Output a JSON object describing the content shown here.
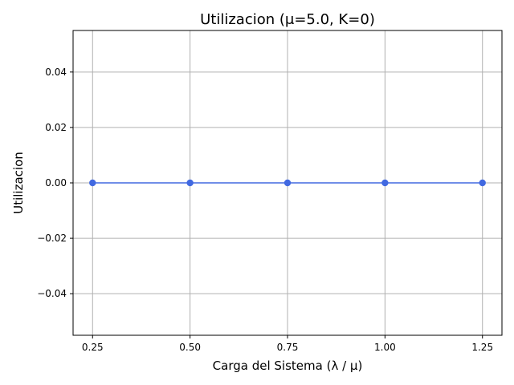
{
  "chart_data": {
    "type": "line",
    "title": "Utilizacion (μ=5.0, K=0)",
    "xlabel": "Carga del Sistema (λ / μ)",
    "ylabel": "Utilizacion",
    "x": [
      0.25,
      0.5,
      0.75,
      1.0,
      1.25
    ],
    "x_tick_labels": [
      "0.25",
      "0.50",
      "0.75",
      "1.00",
      "1.25"
    ],
    "y_ticks": [
      -0.04,
      -0.02,
      0.0,
      0.02,
      0.04
    ],
    "y_tick_labels": [
      "−0.04",
      "−0.02",
      "0.00",
      "0.02",
      "0.04"
    ],
    "xlim": [
      0.2,
      1.3
    ],
    "ylim": [
      -0.055,
      0.055
    ],
    "grid": true,
    "series": [
      {
        "values": [
          0,
          0,
          0,
          0,
          0
        ],
        "color": "#4169e1",
        "marker": "circle"
      }
    ]
  }
}
